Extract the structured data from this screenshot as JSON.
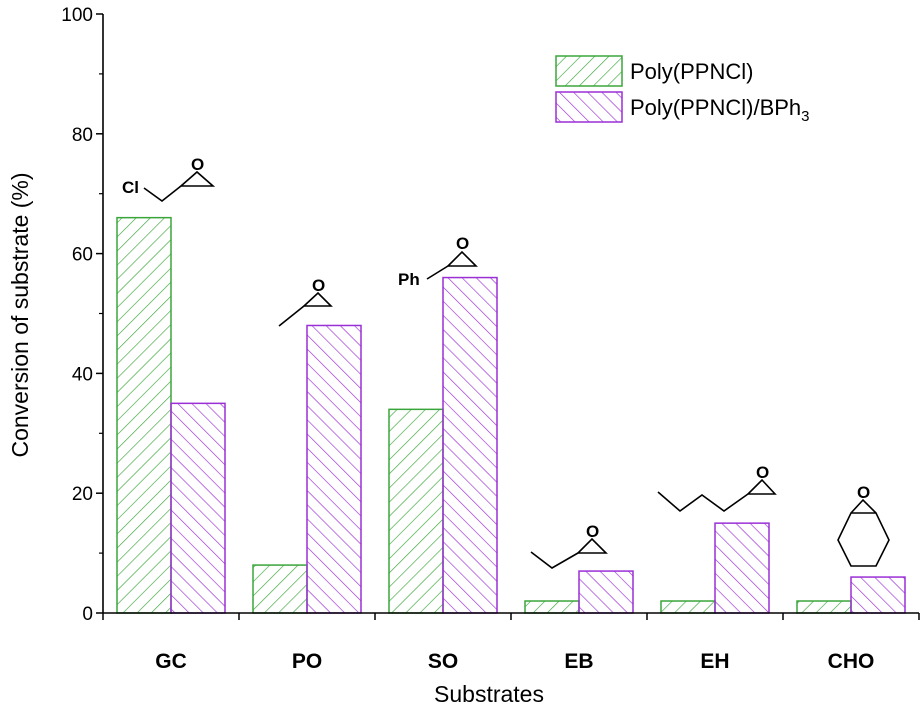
{
  "chart_data": {
    "type": "bar",
    "xlabel": "Substrates",
    "ylabel": "Conversion of substrate  (%)",
    "ylim": [
      0,
      100
    ],
    "yticks": [
      0,
      20,
      40,
      60,
      80,
      100
    ],
    "categories": [
      "GC",
      "PO",
      "SO",
      "EB",
      "EH",
      "CHO"
    ],
    "series": [
      {
        "name": "Poly(PPNCl)",
        "base": "Poly(PPNCl)",
        "sub": "",
        "values": [
          66,
          8,
          34,
          2,
          2,
          2
        ],
        "color": "#3aa53a",
        "pattern": "hatch-forward"
      },
      {
        "name": "Poly(PPNCl)/BPh3",
        "base": "Poly(PPNCl)/BPh",
        "sub": "3",
        "values": [
          35,
          48,
          56,
          7,
          15,
          6
        ],
        "color": "#9b2fd6",
        "pattern": "hatch-back"
      }
    ],
    "legend_position": "top-right",
    "grid": false,
    "structure_labels": {
      "cl": "Cl",
      "ph": "Ph",
      "o": "O"
    }
  }
}
